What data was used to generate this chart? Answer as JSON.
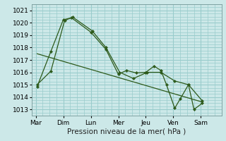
{
  "background_color": "#cce8e8",
  "grid_color": "#99cccc",
  "line_color": "#2d5a1b",
  "xlabel": "Pression niveau de la mer( hPa )",
  "xlabel_fontsize": 7.5,
  "ylim": [
    1012.5,
    1021.5
  ],
  "yticks": [
    1013,
    1014,
    1015,
    1016,
    1017,
    1018,
    1019,
    1020,
    1021
  ],
  "xtick_labels": [
    "Mar",
    "Dim",
    "Lun",
    "Mer",
    "Jeu",
    "Ven",
    "Sam"
  ],
  "xtick_positions": [
    0,
    1,
    2,
    3,
    4,
    5,
    6
  ],
  "xlim": [
    -0.15,
    6.3
  ],
  "line1_x": [
    0.05,
    0.55,
    1.05,
    1.35,
    2.05,
    2.55,
    3.05,
    3.55,
    4.05,
    4.55,
    5.05,
    5.55,
    6.05
  ],
  "line1_y": [
    1015.0,
    1016.1,
    1020.2,
    1020.45,
    1019.35,
    1018.0,
    1016.0,
    1015.5,
    1016.0,
    1016.0,
    1015.3,
    1015.0,
    1013.7
  ],
  "line2_x": [
    0.05,
    0.55,
    1.0,
    1.3,
    2.0,
    2.55,
    3.0,
    3.3,
    3.65,
    4.0,
    4.3,
    4.55,
    4.75,
    5.05,
    5.25,
    5.55,
    5.75,
    6.05
  ],
  "line2_y": [
    1014.85,
    1017.7,
    1020.25,
    1020.4,
    1019.25,
    1017.85,
    1015.85,
    1016.15,
    1015.95,
    1016.0,
    1016.5,
    1016.15,
    1015.0,
    1013.1,
    1013.85,
    1015.0,
    1013.0,
    1013.5
  ],
  "trend_x": [
    0.05,
    6.05
  ],
  "trend_y": [
    1017.5,
    1013.6
  ]
}
